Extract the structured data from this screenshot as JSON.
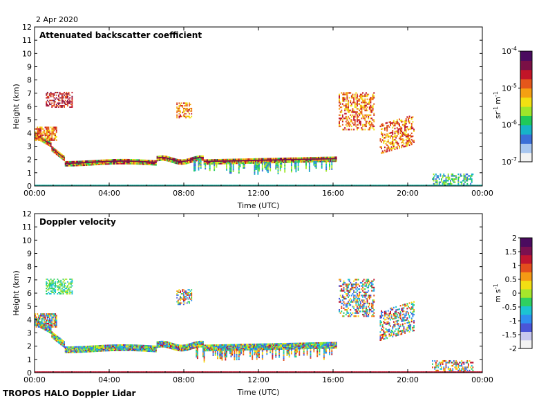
{
  "date_label": "2 Apr 2020",
  "footer_label": "TROPOS HALO Doppler Lidar",
  "chart_data": [
    {
      "type": "heatmap",
      "title": "Attenuated backscatter coefficient",
      "xlabel": "Time (UTC)",
      "ylabel": "Height (km)",
      "x_ticks": [
        "00:00",
        "04:00",
        "08:00",
        "12:00",
        "16:00",
        "20:00",
        "00:00"
      ],
      "y_ticks": [
        "0",
        "1",
        "2",
        "3",
        "4",
        "5",
        "6",
        "7",
        "8",
        "9",
        "10",
        "11",
        "12"
      ],
      "ylim": [
        0,
        12
      ],
      "xlim_hours": [
        0,
        24
      ],
      "colorbar": {
        "unit_base": "sr",
        "unit_base_exp": "-1",
        "unit_second": "m",
        "unit_second_exp": "-1",
        "scale": "log",
        "ticks": [
          {
            "base": "10",
            "exp": "-4"
          },
          {
            "base": "10",
            "exp": "-5"
          },
          {
            "base": "10",
            "exp": "-6"
          },
          {
            "base": "10",
            "exp": "-7"
          }
        ],
        "colors": [
          "#f3f3f3",
          "#a9c7f0",
          "#3b6fd8",
          "#17b3c8",
          "#1fc95a",
          "#9ee62a",
          "#f2e012",
          "#f5a012",
          "#e4571b",
          "#c21528",
          "#7a1046",
          "#4b0b5f"
        ]
      }
    },
    {
      "type": "heatmap",
      "title": "Doppler velocity",
      "xlabel": "Time (UTC)",
      "ylabel": "Height (km)",
      "x_ticks": [
        "00:00",
        "04:00",
        "08:00",
        "12:00",
        "16:00",
        "20:00",
        "00:00"
      ],
      "y_ticks": [
        "0",
        "1",
        "2",
        "3",
        "4",
        "5",
        "6",
        "7",
        "8",
        "9",
        "10",
        "11",
        "12"
      ],
      "ylim": [
        0,
        12
      ],
      "xlim_hours": [
        0,
        24
      ],
      "colorbar": {
        "unit_base": "m",
        "unit_base_exp": "",
        "unit_second": "s",
        "unit_second_exp": "-1",
        "scale": "linear",
        "ticks": [
          {
            "base": "2",
            "exp": ""
          },
          {
            "base": "1.5",
            "exp": ""
          },
          {
            "base": "1",
            "exp": ""
          },
          {
            "base": "0.5",
            "exp": ""
          },
          {
            "base": "0",
            "exp": ""
          },
          {
            "base": "-0.5",
            "exp": ""
          },
          {
            "base": "-1",
            "exp": ""
          },
          {
            "base": "-1.5",
            "exp": ""
          },
          {
            "base": "-2",
            "exp": ""
          }
        ],
        "colors": [
          "#f3f3f3",
          "#c8c8ee",
          "#4a55d8",
          "#2f8ff0",
          "#1cc4d2",
          "#2fd060",
          "#a6e62b",
          "#f3df13",
          "#f59a14",
          "#e34e1d",
          "#c01530",
          "#7b1050",
          "#4b0b5f"
        ]
      }
    }
  ]
}
